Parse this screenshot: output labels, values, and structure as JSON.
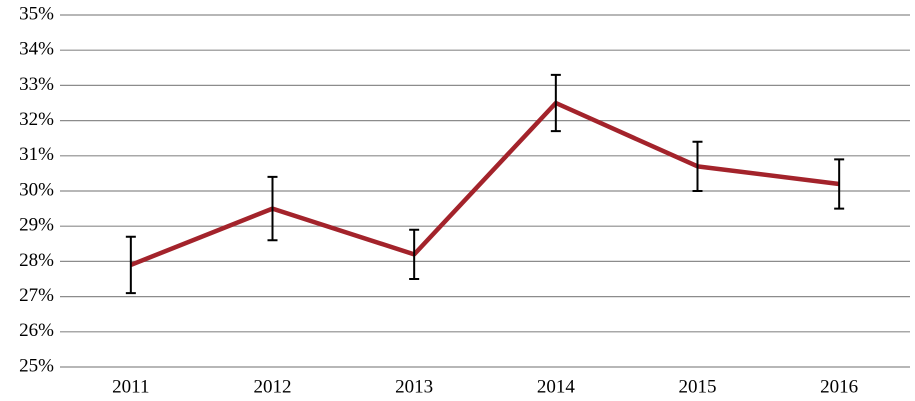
{
  "chart_data": {
    "type": "line",
    "categories": [
      "2011",
      "2012",
      "2013",
      "2014",
      "2015",
      "2016"
    ],
    "series": [
      {
        "color": "#a3232b",
        "values": [
          27.9,
          29.5,
          28.2,
          32.5,
          30.7,
          30.2
        ],
        "errors": [
          0.8,
          0.9,
          0.7,
          0.8,
          0.7,
          0.7
        ]
      }
    ],
    "ylim": [
      25,
      35
    ],
    "yticks": [
      {
        "value": 25,
        "label": "25%"
      },
      {
        "value": 26,
        "label": "26%"
      },
      {
        "value": 27,
        "label": "27%"
      },
      {
        "value": 28,
        "label": "28%"
      },
      {
        "value": 29,
        "label": "29%"
      },
      {
        "value": 30,
        "label": "30%"
      },
      {
        "value": 31,
        "label": "31%"
      },
      {
        "value": 32,
        "label": "32%"
      },
      {
        "value": 33,
        "label": "33%"
      },
      {
        "value": 34,
        "label": "34%"
      },
      {
        "value": 35,
        "label": "35%"
      }
    ],
    "grid": true
  }
}
